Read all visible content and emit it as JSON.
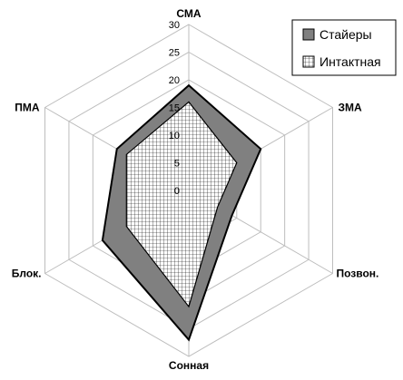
{
  "chart_data": {
    "type": "radar",
    "title": "",
    "axes": [
      "СМА",
      "ЗМА",
      "Позвон.",
      "Сонная",
      "Блок.",
      "ПМА"
    ],
    "r_range": [
      0,
      30
    ],
    "ticks": [
      0,
      5,
      10,
      15,
      20,
      25,
      30
    ],
    "grid": true,
    "legend_position": "top-right",
    "series": [
      {
        "name": "Стайеры",
        "values": [
          19,
          15,
          9,
          27,
          18,
          15
        ],
        "fill": "#808080",
        "pattern": "solid"
      },
      {
        "name": "Интактная",
        "values": [
          16,
          10,
          6,
          21,
          13,
          13
        ],
        "fill": "#ffffff",
        "pattern": "grid"
      }
    ]
  }
}
